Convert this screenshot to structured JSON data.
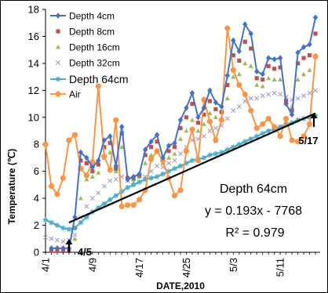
{
  "chart_data": {
    "type": "line",
    "xlabel": "DATE,2010",
    "ylabel": "Temperature (℃)",
    "ylim": [
      0,
      18
    ],
    "yticks": [
      "0",
      "2",
      "4",
      "6",
      "8",
      "10",
      "12",
      "14",
      "16",
      "18"
    ],
    "xlim": [
      "2010-04-01",
      "2010-05-17"
    ],
    "xticks": [
      {
        "date": "2010-04-01",
        "label": "4/1"
      },
      {
        "date": "2010-04-09",
        "label": "4/9"
      },
      {
        "date": "2010-04-17",
        "label": "4/17"
      },
      {
        "date": "2010-04-25",
        "label": "4/25"
      },
      {
        "date": "2010-05-03",
        "label": "5/3"
      },
      {
        "date": "2010-05-11",
        "label": "5/11"
      }
    ],
    "grid": false,
    "legend_position": "top-left",
    "series": [
      {
        "name": "Depth 4cm",
        "color": "#4472C4",
        "marker": "diamond",
        "line": true,
        "x": [
          "2010-04-02",
          "2010-04-03",
          "2010-04-04",
          "2010-04-05",
          "2010-04-06",
          "2010-04-07",
          "2010-04-08",
          "2010-04-09",
          "2010-04-10",
          "2010-04-11",
          "2010-04-12",
          "2010-04-13",
          "2010-04-14",
          "2010-04-15",
          "2010-04-16",
          "2010-04-17",
          "2010-04-18",
          "2010-04-19",
          "2010-04-20",
          "2010-04-21",
          "2010-04-22",
          "2010-04-23",
          "2010-04-24",
          "2010-04-25",
          "2010-04-26",
          "2010-04-27",
          "2010-04-28",
          "2010-04-29",
          "2010-04-30",
          "2010-05-01",
          "2010-05-02",
          "2010-05-03",
          "2010-05-04",
          "2010-05-05",
          "2010-05-06",
          "2010-05-07",
          "2010-05-08",
          "2010-05-09",
          "2010-05-10",
          "2010-05-11",
          "2010-05-12",
          "2010-05-13",
          "2010-05-14",
          "2010-05-15",
          "2010-05-16",
          "2010-05-17"
        ],
        "values": [
          0.3,
          0.3,
          0.3,
          0.3,
          2.6,
          7.4,
          7.0,
          6.3,
          6.8,
          8.3,
          8.6,
          6.4,
          9.3,
          5.4,
          5.6,
          5.8,
          7.6,
          8.2,
          8.7,
          7.0,
          7.9,
          8.1,
          9.8,
          10.7,
          11.8,
          10.0,
          10.7,
          12.0,
          11.1,
          10.8,
          13.1,
          15.7,
          14.9,
          16.9,
          16.2,
          13.4,
          13.2,
          14.4,
          14.3,
          14.4,
          11.0,
          10.2,
          14.8,
          15.2,
          15.4,
          17.4
        ]
      },
      {
        "name": "Depth 8cm",
        "color": "#C0504D",
        "marker": "square",
        "line": false,
        "x": [
          "2010-04-02",
          "2010-04-03",
          "2010-04-04",
          "2010-04-05",
          "2010-04-06",
          "2010-04-07",
          "2010-04-08",
          "2010-04-09",
          "2010-04-10",
          "2010-04-11",
          "2010-04-12",
          "2010-04-13",
          "2010-04-14",
          "2010-04-15",
          "2010-04-16",
          "2010-04-17",
          "2010-04-18",
          "2010-04-19",
          "2010-04-20",
          "2010-04-21",
          "2010-04-22",
          "2010-04-23",
          "2010-04-24",
          "2010-04-25",
          "2010-04-26",
          "2010-04-27",
          "2010-04-28",
          "2010-04-29",
          "2010-04-30",
          "2010-05-01",
          "2010-05-02",
          "2010-05-03",
          "2010-05-04",
          "2010-05-05",
          "2010-05-06",
          "2010-05-07",
          "2010-05-08",
          "2010-05-09",
          "2010-05-10",
          "2010-05-11",
          "2010-05-12",
          "2010-05-13",
          "2010-05-14",
          "2010-05-15",
          "2010-05-16",
          "2010-05-17"
        ],
        "values": [
          0.1,
          0.1,
          0.2,
          0.2,
          1.8,
          6.8,
          6.6,
          6.0,
          6.5,
          7.8,
          8.1,
          6.2,
          8.8,
          5.5,
          5.5,
          5.7,
          7.2,
          7.8,
          8.2,
          6.8,
          7.5,
          7.8,
          9.2,
          10.0,
          11.0,
          9.6,
          10.2,
          11.2,
          10.6,
          10.4,
          12.4,
          14.6,
          14.2,
          15.6,
          15.1,
          12.9,
          12.8,
          13.8,
          13.6,
          13.7,
          11.2,
          10.5,
          14.0,
          14.4,
          14.6,
          16.2
        ]
      },
      {
        "name": "Depth 16cm",
        "color": "#9BBB59",
        "marker": "triangle",
        "line": false,
        "x": [
          "2010-04-02",
          "2010-04-03",
          "2010-04-04",
          "2010-04-05",
          "2010-04-06",
          "2010-04-07",
          "2010-04-08",
          "2010-04-09",
          "2010-04-10",
          "2010-04-11",
          "2010-04-12",
          "2010-04-13",
          "2010-04-14",
          "2010-04-15",
          "2010-04-16",
          "2010-04-17",
          "2010-04-18",
          "2010-04-19",
          "2010-04-20",
          "2010-04-21",
          "2010-04-22",
          "2010-04-23",
          "2010-04-24",
          "2010-04-25",
          "2010-04-26",
          "2010-04-27",
          "2010-04-28",
          "2010-04-29",
          "2010-04-30",
          "2010-05-01",
          "2010-05-02",
          "2010-05-03",
          "2010-05-04",
          "2010-05-05",
          "2010-05-06",
          "2010-05-07",
          "2010-05-08",
          "2010-05-09",
          "2010-05-10",
          "2010-05-11",
          "2010-05-12",
          "2010-05-13",
          "2010-05-14",
          "2010-05-15",
          "2010-05-16",
          "2010-05-17"
        ],
        "values": [
          0.2,
          0.2,
          0.3,
          0.4,
          1.0,
          4.0,
          5.4,
          5.6,
          5.9,
          7.0,
          7.4,
          6.0,
          7.8,
          5.6,
          5.4,
          5.6,
          6.6,
          7.2,
          7.5,
          6.6,
          7.0,
          7.3,
          8.4,
          9.0,
          9.8,
          9.0,
          9.5,
          10.3,
          10.0,
          9.9,
          11.4,
          13.0,
          13.2,
          14.0,
          13.8,
          12.4,
          12.3,
          12.9,
          12.8,
          12.8,
          11.3,
          10.8,
          12.8,
          13.2,
          13.5,
          14.6
        ]
      },
      {
        "name": "Depth 32cm",
        "color": "#A59AC9",
        "marker": "x",
        "line": false,
        "x": [
          "2010-04-01",
          "2010-04-02",
          "2010-04-03",
          "2010-04-04",
          "2010-04-05",
          "2010-04-06",
          "2010-04-07",
          "2010-04-08",
          "2010-04-09",
          "2010-04-10",
          "2010-04-11",
          "2010-04-12",
          "2010-04-13",
          "2010-04-14",
          "2010-04-15",
          "2010-04-16",
          "2010-04-17",
          "2010-04-18",
          "2010-04-19",
          "2010-04-20",
          "2010-04-21",
          "2010-04-22",
          "2010-04-23",
          "2010-04-24",
          "2010-04-25",
          "2010-04-26",
          "2010-04-27",
          "2010-04-28",
          "2010-04-29",
          "2010-04-30",
          "2010-05-01",
          "2010-05-02",
          "2010-05-03",
          "2010-05-04",
          "2010-05-05",
          "2010-05-06",
          "2010-05-07",
          "2010-05-08",
          "2010-05-09",
          "2010-05-10",
          "2010-05-11",
          "2010-05-12",
          "2010-05-13",
          "2010-05-14",
          "2010-05-15",
          "2010-05-16",
          "2010-05-17"
        ],
        "values": [
          1.1,
          1.0,
          0.9,
          0.8,
          0.9,
          1.3,
          2.6,
          3.4,
          4.0,
          4.4,
          4.9,
          5.3,
          5.4,
          5.6,
          5.3,
          5.2,
          5.2,
          5.6,
          6.0,
          6.4,
          6.3,
          6.6,
          6.8,
          7.3,
          7.8,
          8.3,
          8.4,
          8.6,
          9.0,
          9.2,
          9.4,
          9.9,
          10.5,
          10.8,
          11.2,
          11.4,
          11.4,
          11.6,
          11.7,
          11.8,
          11.7,
          11.5,
          11.3,
          11.4,
          11.6,
          11.8,
          12.0
        ]
      },
      {
        "name": "Depth 64cm",
        "color": "#4BACC6",
        "marker": "star",
        "line": true,
        "x": [
          "2010-04-01",
          "2010-04-02",
          "2010-04-03",
          "2010-04-04",
          "2010-04-05",
          "2010-04-06",
          "2010-04-07",
          "2010-04-08",
          "2010-04-09",
          "2010-04-10",
          "2010-04-11",
          "2010-04-12",
          "2010-04-13",
          "2010-04-14",
          "2010-04-15",
          "2010-04-16",
          "2010-04-17",
          "2010-04-18",
          "2010-04-19",
          "2010-04-20",
          "2010-04-21",
          "2010-04-22",
          "2010-04-23",
          "2010-04-24",
          "2010-04-25",
          "2010-04-26",
          "2010-04-27",
          "2010-04-28",
          "2010-04-29",
          "2010-04-30",
          "2010-05-01",
          "2010-05-02",
          "2010-05-03",
          "2010-05-04",
          "2010-05-05",
          "2010-05-06",
          "2010-05-07",
          "2010-05-08",
          "2010-05-09",
          "2010-05-10",
          "2010-05-11",
          "2010-05-12",
          "2010-05-13",
          "2010-05-14",
          "2010-05-15",
          "2010-05-16",
          "2010-05-17"
        ],
        "values": [
          2.4,
          2.2,
          2.0,
          1.8,
          1.7,
          1.8,
          2.2,
          2.6,
          3.0,
          3.3,
          3.6,
          3.9,
          4.2,
          4.5,
          4.8,
          5.0,
          5.2,
          5.4,
          5.5,
          5.6,
          5.8,
          6.0,
          6.2,
          6.4,
          6.6,
          6.8,
          6.9,
          7.0,
          7.2,
          7.3,
          7.4,
          7.6,
          7.8,
          8.0,
          8.2,
          8.4,
          8.6,
          8.8,
          9.0,
          9.1,
          9.3,
          9.5,
          9.6,
          9.8,
          9.9,
          10.0,
          10.1
        ]
      },
      {
        "name": "Air",
        "color": "#F79646",
        "marker": "circle",
        "line": true,
        "x": [
          "2010-04-01",
          "2010-04-02",
          "2010-04-03",
          "2010-04-04",
          "2010-04-05",
          "2010-04-06",
          "2010-04-07",
          "2010-04-08",
          "2010-04-09",
          "2010-04-10",
          "2010-04-11",
          "2010-04-12",
          "2010-04-13",
          "2010-04-14",
          "2010-04-15",
          "2010-04-16",
          "2010-04-17",
          "2010-04-18",
          "2010-04-19",
          "2010-04-20",
          "2010-04-21",
          "2010-04-22",
          "2010-04-23",
          "2010-04-24",
          "2010-04-25",
          "2010-04-26",
          "2010-04-27",
          "2010-04-28",
          "2010-04-29",
          "2010-04-30",
          "2010-05-01",
          "2010-05-02",
          "2010-05-03",
          "2010-05-04",
          "2010-05-05",
          "2010-05-06",
          "2010-05-07",
          "2010-05-08",
          "2010-05-09",
          "2010-05-10",
          "2010-05-11",
          "2010-05-12",
          "2010-05-13",
          "2010-05-14",
          "2010-05-15",
          "2010-05-16",
          "2010-05-17"
        ],
        "values": [
          8.0,
          4.9,
          4.3,
          5.5,
          8.3,
          8.7,
          6.2,
          5.7,
          6.7,
          12.3,
          7.1,
          6.1,
          9.8,
          3.4,
          3.5,
          3.5,
          3.9,
          4.6,
          6.9,
          7.5,
          6.8,
          5.5,
          4.2,
          4.6,
          7.5,
          9.1,
          6.8,
          11.3,
          9.7,
          8.3,
          9.8,
          16.6,
          13.5,
          12.4,
          11.7,
          10.5,
          9.2,
          9.5,
          9.9,
          9.3,
          8.6,
          9.9,
          8.3,
          8.2,
          8.6,
          9.5,
          14.5
        ]
      }
    ],
    "trendline": {
      "series": "Depth 64cm",
      "slope": 0.193,
      "intercept": -7768,
      "x": [
        "2010-04-05",
        "2010-05-17"
      ],
      "values": [
        2.2,
        10.3
      ],
      "color": "#000000"
    },
    "annotations": {
      "equation_title": "Depth 64cm",
      "equation": "y = 0.193x - 7768",
      "r_squared": "R² = 0.979",
      "arrow_left": {
        "label": "4/5",
        "date": "2010-04-05"
      },
      "arrow_right": {
        "label": "5/17",
        "date": "2010-05-17"
      }
    }
  }
}
